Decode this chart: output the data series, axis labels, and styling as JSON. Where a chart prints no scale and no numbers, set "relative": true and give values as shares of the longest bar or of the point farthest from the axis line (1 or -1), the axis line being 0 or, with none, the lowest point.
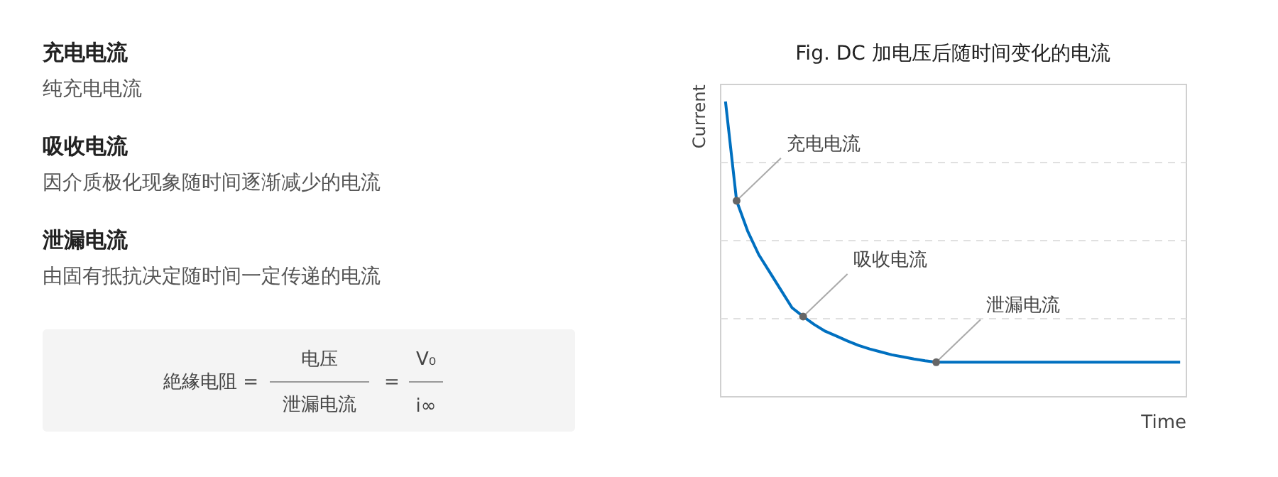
{
  "chart_data": [
    {
      "type": "other",
      "annotations": [
        "充电电流",
        "纯充电电流",
        "吸收电流",
        "因介质极化现象随时间逐渐减少的电流",
        "泄漏电流",
        "由固有抵抗决定随时间一定传递的电流",
        "絶緣电阻 =",
        "电压",
        "泄漏电流",
        "=",
        "V₀",
        "i∞"
      ]
    },
    {
      "type": "line",
      "title": "Fig. DC 加电压后随时间变化的电流",
      "xlabel": "Time",
      "ylabel": "Current",
      "relative": true,
      "tick_labels": false,
      "grid": "y",
      "categories": [
        null,
        null,
        null,
        null,
        null,
        null,
        null,
        null,
        null,
        null,
        null,
        null,
        null,
        null,
        null,
        null,
        null,
        null,
        null,
        null,
        null,
        null,
        null,
        null,
        null,
        null,
        null,
        null,
        null,
        null,
        null,
        null,
        null,
        null,
        null,
        null,
        null,
        null,
        null,
        null,
        null,
        null
      ],
      "series": [
        {
          "color": "#0070c0",
          "values": [
            1,
            0.663,
            0.56,
            0.48,
            0.42,
            0.36,
            0.3,
            0.27,
            0.243,
            0.22,
            0.204,
            0.187,
            0.172,
            0.16,
            0.15,
            0.14,
            0.133,
            0.126,
            0.12,
            0.115,
            0.115,
            0.115,
            0.115,
            0.115,
            0.115,
            0.115,
            0.115,
            0.115,
            0.115,
            0.115,
            0.115,
            0.115,
            0.115,
            0.115,
            0.115,
            0.115,
            0.115,
            0.115,
            0.115,
            0.115,
            0.115,
            0.115
          ]
        }
      ],
      "annotations": [
        "充电电流",
        "吸收电流",
        "泄漏电流"
      ]
    }
  ]
}
